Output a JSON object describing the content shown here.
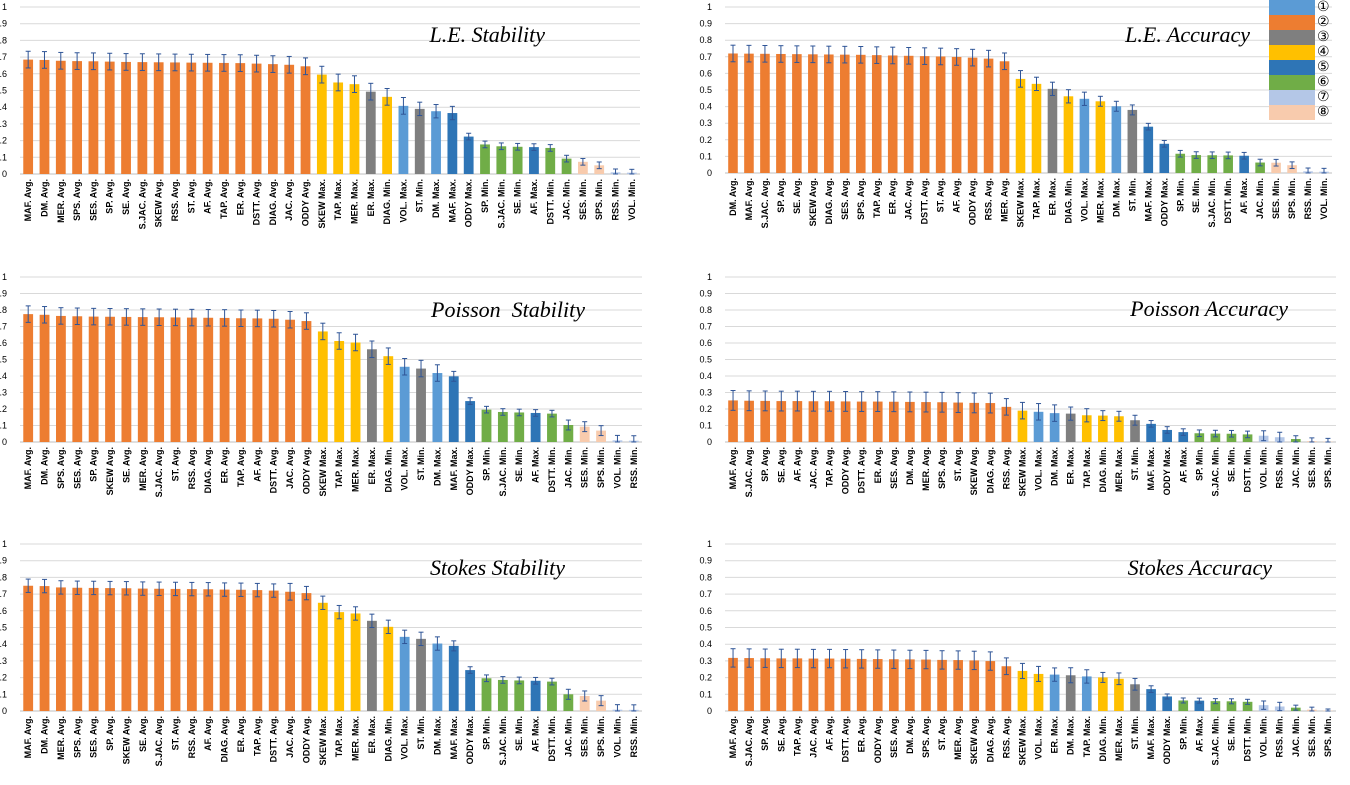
{
  "legend": {
    "items": [
      {
        "label": "①",
        "color": "#5B9BD5"
      },
      {
        "label": "②",
        "color": "#ED7D31"
      },
      {
        "label": "③",
        "color": "#7F7F7F"
      },
      {
        "label": "④",
        "color": "#FFC000"
      },
      {
        "label": "⑤",
        "color": "#2E75B6"
      },
      {
        "label": "⑥",
        "color": "#70AD47"
      },
      {
        "label": "⑦",
        "color": "#B4C7E7"
      },
      {
        "label": "⑧",
        "color": "#F8CBAD"
      }
    ]
  },
  "chart_data": [
    {
      "type": "bar",
      "title": "L.E. Stability",
      "ylim": [
        0,
        1
      ],
      "yticks": [
        "0",
        "0.1",
        "0.2",
        "0.3",
        "0.4",
        "0.5",
        "0.6",
        "0.7",
        "0.8",
        "0.9",
        "1"
      ],
      "error_bars": true,
      "categories": [
        "MAF. Avg.",
        "DM. Avg.",
        "MER. Avg.",
        "SPS. Avg.",
        "SES. Avg.",
        "SP. Avg.",
        "SE. Avg.",
        "S.JAC. Avg.",
        "SKEW Avg.",
        "RSS. Avg.",
        "ST. Avg.",
        "AF. Avg.",
        "TAP. Avg.",
        "ER. Avg.",
        "DSTT. Avg.",
        "DIAG. Avg.",
        "JAC. Avg.",
        "ODDY Avg.",
        "SKEW Max.",
        "TAP. Max.",
        "MER. Max.",
        "ER. Max.",
        "DIAG. Min.",
        "VOL. Max.",
        "ST. Min.",
        "DM. Max.",
        "MAF. Max.",
        "ODDY Max.",
        "SP. Min.",
        "S.JAC. Min.",
        "SE. Min.",
        "AF. Max.",
        "DSTT. Min.",
        "JAC. Min.",
        "SES. Min.",
        "SPS. Min.",
        "RSS. Min.",
        "VOL. Min."
      ],
      "values": [
        0.685,
        0.683,
        0.678,
        0.676,
        0.675,
        0.673,
        0.671,
        0.67,
        0.669,
        0.668,
        0.667,
        0.666,
        0.665,
        0.664,
        0.661,
        0.658,
        0.654,
        0.645,
        0.595,
        0.548,
        0.538,
        0.493,
        0.462,
        0.408,
        0.39,
        0.376,
        0.365,
        0.224,
        0.177,
        0.166,
        0.163,
        0.161,
        0.156,
        0.092,
        0.073,
        0.052,
        0.01,
        0.008
      ],
      "errors": [
        0.05,
        0.05,
        0.05,
        0.05,
        0.05,
        0.05,
        0.05,
        0.05,
        0.05,
        0.05,
        0.05,
        0.05,
        0.05,
        0.05,
        0.05,
        0.05,
        0.05,
        0.05,
        0.05,
        0.05,
        0.05,
        0.05,
        0.05,
        0.05,
        0.04,
        0.04,
        0.04,
        0.02,
        0.02,
        0.02,
        0.02,
        0.02,
        0.02,
        0.02,
        0.02,
        0.02,
        0.02,
        0.02
      ],
      "groups": [
        2,
        2,
        2,
        2,
        2,
        2,
        2,
        2,
        2,
        2,
        2,
        2,
        2,
        2,
        2,
        2,
        2,
        2,
        4,
        4,
        4,
        3,
        4,
        1,
        3,
        1,
        5,
        5,
        6,
        6,
        6,
        5,
        6,
        6,
        8,
        8,
        7,
        7
      ]
    },
    {
      "type": "bar",
      "title": "L.E. Accuracy",
      "ylim": [
        0,
        1
      ],
      "yticks": [
        "0",
        "0.1",
        "0.2",
        "0.3",
        "0.4",
        "0.5",
        "0.6",
        "0.7",
        "0.8",
        "0.9",
        "1"
      ],
      "error_bars": true,
      "categories": [
        "DM. Avg.",
        "MAF. Avg.",
        "S.JAC. Avg.",
        "SP. Avg.",
        "SE. Avg.",
        "SKEW Avg.",
        "DIAG. Avg.",
        "SES. Avg.",
        "SPS. Avg.",
        "TAP. Avg.",
        "ER. Avg.",
        "JAC. Avg.",
        "DSTT. Avg.",
        "ST. Avg.",
        "AF. Avg.",
        "ODDY Avg.",
        "RSS. Avg.",
        "MER. Avg.",
        "SKEW Max.",
        "TAP. Max.",
        "ER. Max.",
        "DIAG. Min.",
        "VOL. Max.",
        "MER. Max.",
        "DM. Max.",
        "ST. Min.",
        "MAF. Max.",
        "ODDY Max.",
        "SP. Min.",
        "SE. Min.",
        "S.JAC. Min.",
        "DSTT. Min.",
        "AF. Max.",
        "JAC. Min.",
        "SES. Min.",
        "SPS. Min.",
        "RSS. Min.",
        "VOL. Min."
      ],
      "values": [
        0.72,
        0.719,
        0.718,
        0.717,
        0.716,
        0.715,
        0.714,
        0.713,
        0.712,
        0.71,
        0.708,
        0.706,
        0.704,
        0.702,
        0.699,
        0.695,
        0.689,
        0.673,
        0.567,
        0.537,
        0.507,
        0.462,
        0.447,
        0.432,
        0.402,
        0.38,
        0.279,
        0.176,
        0.116,
        0.108,
        0.107,
        0.106,
        0.104,
        0.063,
        0.062,
        0.047,
        0.01,
        0.008
      ],
      "errors": [
        0.05,
        0.05,
        0.05,
        0.05,
        0.05,
        0.05,
        0.05,
        0.05,
        0.05,
        0.05,
        0.05,
        0.05,
        0.05,
        0.05,
        0.05,
        0.05,
        0.05,
        0.05,
        0.05,
        0.04,
        0.04,
        0.04,
        0.04,
        0.03,
        0.03,
        0.03,
        0.02,
        0.02,
        0.02,
        0.02,
        0.02,
        0.02,
        0.02,
        0.02,
        0.02,
        0.02,
        0.02,
        0.02
      ],
      "groups": [
        2,
        2,
        2,
        2,
        2,
        2,
        2,
        2,
        2,
        2,
        2,
        2,
        2,
        2,
        2,
        2,
        2,
        2,
        4,
        4,
        3,
        4,
        1,
        4,
        1,
        3,
        5,
        5,
        6,
        6,
        6,
        6,
        5,
        6,
        8,
        8,
        7,
        7
      ]
    },
    {
      "type": "bar",
      "title": "Poisson  Stability",
      "ylim": [
        0,
        1
      ],
      "yticks": [
        "0",
        "0.1",
        "0.2",
        "0.3",
        "0.4",
        "0.5",
        "0.6",
        "0.7",
        "0.8",
        "0.9",
        "1"
      ],
      "error_bars": true,
      "categories": [
        "MAF. Avg.",
        "DM. Avg.",
        "SPS. Avg.",
        "SES. Avg.",
        "SP. Avg.",
        "SKEW Avg.",
        "SE. Avg.",
        "MER. Avg.",
        "S.JAC. Avg.",
        "ST. Avg.",
        "RSS. Avg.",
        "DIAG. Avg.",
        "ER. Avg.",
        "TAP. Avg.",
        "AF. Avg.",
        "DSTT. Avg.",
        "JAC. Avg.",
        "ODDY Avg.",
        "SKEW Max.",
        "TAP. Max.",
        "MER. Max.",
        "ER. Max.",
        "DIAG. Min.",
        "VOL. Max.",
        "ST. Min.",
        "DM. Max.",
        "MAF. Max.",
        "ODDY Max.",
        "SP. Min.",
        "S.JAC. Min.",
        "SE. Min.",
        "AF. Max.",
        "DSTT. Min.",
        "JAC. Min.",
        "SES. Min.",
        "SPS. Min.",
        "VOL. Min.",
        "RSS. Min."
      ],
      "values": [
        0.775,
        0.771,
        0.764,
        0.762,
        0.76,
        0.759,
        0.758,
        0.757,
        0.756,
        0.755,
        0.754,
        0.753,
        0.752,
        0.75,
        0.749,
        0.747,
        0.741,
        0.733,
        0.67,
        0.612,
        0.603,
        0.562,
        0.52,
        0.456,
        0.445,
        0.418,
        0.398,
        0.248,
        0.196,
        0.182,
        0.179,
        0.176,
        0.172,
        0.103,
        0.093,
        0.069,
        0.01,
        0.008
      ],
      "errors": [
        0.05,
        0.05,
        0.05,
        0.05,
        0.05,
        0.05,
        0.05,
        0.05,
        0.05,
        0.05,
        0.05,
        0.05,
        0.05,
        0.05,
        0.05,
        0.05,
        0.05,
        0.05,
        0.05,
        0.05,
        0.05,
        0.05,
        0.05,
        0.05,
        0.05,
        0.05,
        0.03,
        0.02,
        0.02,
        0.02,
        0.02,
        0.02,
        0.02,
        0.03,
        0.03,
        0.03,
        0.03,
        0.03
      ],
      "groups": [
        2,
        2,
        2,
        2,
        2,
        2,
        2,
        2,
        2,
        2,
        2,
        2,
        2,
        2,
        2,
        2,
        2,
        2,
        4,
        4,
        4,
        3,
        4,
        1,
        3,
        1,
        5,
        5,
        6,
        6,
        6,
        5,
        6,
        6,
        8,
        8,
        7,
        7
      ]
    },
    {
      "type": "bar",
      "title": "Poisson Accuracy",
      "ylim": [
        0,
        1
      ],
      "yticks": [
        "0",
        "0.1",
        "0.2",
        "0.3",
        "0.4",
        "0.5",
        "0.6",
        "0.7",
        "0.8",
        "0.9",
        "1"
      ],
      "error_bars": true,
      "categories": [
        "MAF. Avg.",
        "S.JAC. Avg.",
        "SP. Avg.",
        "SE. Avg.",
        "AF. Avg.",
        "JAC. Avg.",
        "TAP. Avg.",
        "ODDY Avg.",
        "DSTT. Avg.",
        "ER. Avg.",
        "SES. Avg.",
        "DM. Avg.",
        "MER. Avg.",
        "SPS. Avg.",
        "ST. Avg.",
        "SKEW Avg.",
        "DIAG. Avg.",
        "RSS. Avg.",
        "SKEW Max.",
        "VOL. Max.",
        "DM. Max.",
        "ER. Max.",
        "TAP. Max.",
        "DIAG. Min.",
        "MER. Max.",
        "ST. Min.",
        "MAF. Max.",
        "ODDY Max.",
        "AF. Max.",
        "SP. Min.",
        "S.JAC. Min.",
        "SE. Min.",
        "DSTT. Min.",
        "VOL. Min.",
        "RSS. Min.",
        "JAC. Min.",
        "SES. Min.",
        "SPS. Min."
      ],
      "values": [
        0.252,
        0.25,
        0.249,
        0.248,
        0.248,
        0.247,
        0.247,
        0.246,
        0.245,
        0.245,
        0.244,
        0.243,
        0.242,
        0.241,
        0.239,
        0.237,
        0.236,
        0.213,
        0.19,
        0.183,
        0.175,
        0.172,
        0.162,
        0.16,
        0.156,
        0.132,
        0.11,
        0.073,
        0.06,
        0.053,
        0.051,
        0.05,
        0.046,
        0.038,
        0.029,
        0.018,
        0.005,
        0.002
      ],
      "errors": [
        0.06,
        0.06,
        0.06,
        0.06,
        0.06,
        0.06,
        0.06,
        0.06,
        0.06,
        0.06,
        0.06,
        0.06,
        0.06,
        0.06,
        0.06,
        0.06,
        0.06,
        0.05,
        0.05,
        0.05,
        0.05,
        0.04,
        0.04,
        0.03,
        0.03,
        0.03,
        0.02,
        0.02,
        0.02,
        0.02,
        0.02,
        0.02,
        0.02,
        0.03,
        0.03,
        0.02,
        0.02,
        0.02
      ],
      "groups": [
        2,
        2,
        2,
        2,
        2,
        2,
        2,
        2,
        2,
        2,
        2,
        2,
        2,
        2,
        2,
        2,
        2,
        2,
        4,
        1,
        1,
        3,
        4,
        4,
        4,
        3,
        5,
        5,
        5,
        6,
        6,
        6,
        6,
        7,
        7,
        6,
        8,
        8
      ]
    },
    {
      "type": "bar",
      "title": "Stokes Stability",
      "ylim": [
        0,
        1
      ],
      "yticks": [
        "0",
        "0.1",
        "0.2",
        "0.3",
        "0.4",
        "0.5",
        "0.6",
        "0.7",
        "0.8",
        "0.9",
        "1"
      ],
      "error_bars": true,
      "categories": [
        "MAF. Avg.",
        "DM. Avg.",
        "MER. Avg.",
        "SPS. Avg.",
        "SES. Avg.",
        "SP. Avg.",
        "SKEW Avg.",
        "SE. Avg.",
        "S.JAC. Avg.",
        "ST. Avg.",
        "RSS. Avg.",
        "AF. Avg.",
        "DIAG. Avg.",
        "ER. Avg.",
        "TAP. Avg.",
        "DSTT. Avg.",
        "JAC. Avg.",
        "ODDY Avg.",
        "SKEW Max.",
        "TAP. Max.",
        "MER. Max.",
        "ER. Max.",
        "DIAG. Min.",
        "VOL. Max.",
        "ST. Min.",
        "DM. Max.",
        "MAF. Max.",
        "ODDY Max.",
        "SP. Min.",
        "S.JAC. Min.",
        "SE. Min.",
        "AF. Max.",
        "DSTT. Min.",
        "JAC. Min.",
        "SES. Min.",
        "SPS. Min.",
        "VOL. Min.",
        "RSS. Min."
      ],
      "values": [
        0.75,
        0.748,
        0.74,
        0.738,
        0.737,
        0.736,
        0.735,
        0.733,
        0.732,
        0.731,
        0.73,
        0.729,
        0.727,
        0.726,
        0.724,
        0.721,
        0.714,
        0.706,
        0.648,
        0.592,
        0.584,
        0.54,
        0.504,
        0.444,
        0.432,
        0.404,
        0.39,
        0.245,
        0.196,
        0.186,
        0.183,
        0.181,
        0.176,
        0.1,
        0.09,
        0.062,
        0.008,
        0.007
      ],
      "errors": [
        0.04,
        0.04,
        0.04,
        0.04,
        0.04,
        0.04,
        0.04,
        0.04,
        0.04,
        0.04,
        0.04,
        0.04,
        0.04,
        0.04,
        0.04,
        0.04,
        0.05,
        0.04,
        0.04,
        0.04,
        0.04,
        0.04,
        0.04,
        0.04,
        0.04,
        0.04,
        0.03,
        0.02,
        0.02,
        0.02,
        0.02,
        0.02,
        0.02,
        0.03,
        0.03,
        0.03,
        0.03,
        0.03
      ],
      "groups": [
        2,
        2,
        2,
        2,
        2,
        2,
        2,
        2,
        2,
        2,
        2,
        2,
        2,
        2,
        2,
        2,
        2,
        2,
        4,
        4,
        4,
        3,
        4,
        1,
        3,
        1,
        5,
        5,
        6,
        6,
        6,
        5,
        6,
        6,
        8,
        8,
        7,
        7
      ]
    },
    {
      "type": "bar",
      "title": "Stokes Accuracy",
      "ylim": [
        0,
        1
      ],
      "yticks": [
        "0",
        "0.1",
        "0.2",
        "0.3",
        "0.4",
        "0.5",
        "0.6",
        "0.7",
        "0.8",
        "0.9",
        "1"
      ],
      "error_bars": true,
      "categories": [
        "MAF. Avg.",
        "S.JAC. Avg.",
        "SP. Avg.",
        "SE. Avg.",
        "TAP. Avg.",
        "JAC. Avg.",
        "AF. Avg.",
        "DSTT. Avg.",
        "ER. Avg.",
        "ODDY Avg.",
        "SES. Avg.",
        "DM. Avg.",
        "SPS. Avg.",
        "ST. Avg.",
        "MER. Avg.",
        "SKEW Avg.",
        "DIAG. Avg.",
        "RSS. Avg.",
        "SKEW Max.",
        "VOL. Max.",
        "ER. Max.",
        "DM. Max.",
        "TAP. Max.",
        "DIAG. Min.",
        "MER. Max.",
        "ST. Min.",
        "MAF. Max.",
        "ODDY Max.",
        "SP. Min.",
        "AF. Max.",
        "S.JAC. Min.",
        "SE. Min.",
        "DSTT. Min.",
        "VOL. Min.",
        "RSS. Min.",
        "JAC. Min.",
        "SES. Min.",
        "SPS. Min."
      ],
      "values": [
        0.318,
        0.317,
        0.316,
        0.315,
        0.315,
        0.314,
        0.314,
        0.313,
        0.312,
        0.311,
        0.31,
        0.309,
        0.308,
        0.306,
        0.305,
        0.303,
        0.299,
        0.268,
        0.24,
        0.222,
        0.218,
        0.214,
        0.207,
        0.201,
        0.193,
        0.16,
        0.131,
        0.087,
        0.063,
        0.062,
        0.059,
        0.058,
        0.055,
        0.035,
        0.027,
        0.02,
        0.008,
        0.002
      ],
      "errors": [
        0.055,
        0.055,
        0.055,
        0.055,
        0.055,
        0.055,
        0.055,
        0.055,
        0.055,
        0.055,
        0.055,
        0.055,
        0.055,
        0.055,
        0.055,
        0.055,
        0.055,
        0.05,
        0.045,
        0.045,
        0.04,
        0.045,
        0.04,
        0.03,
        0.035,
        0.035,
        0.02,
        0.015,
        0.015,
        0.015,
        0.015,
        0.015,
        0.015,
        0.025,
        0.025,
        0.015,
        0.015,
        0.01
      ],
      "groups": [
        2,
        2,
        2,
        2,
        2,
        2,
        2,
        2,
        2,
        2,
        2,
        2,
        2,
        2,
        2,
        2,
        2,
        2,
        4,
        4,
        1,
        3,
        1,
        4,
        4,
        3,
        5,
        5,
        6,
        5,
        6,
        6,
        6,
        7,
        7,
        6,
        8,
        8
      ]
    }
  ]
}
